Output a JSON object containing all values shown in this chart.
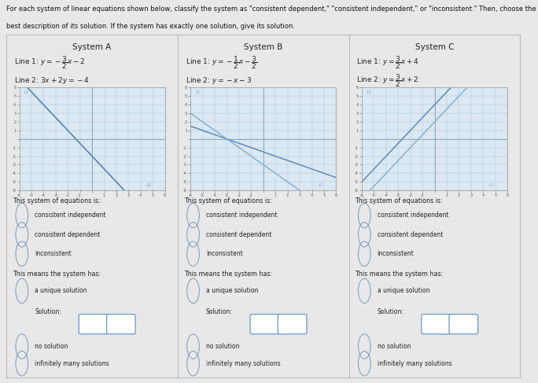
{
  "header_line1": "For each system of linear equations shown below, classify the system as \"consistent dependent,\" \"consistent independent,\" or \"inconsistent.\" Then, choose the",
  "header_line2": "best description of its solution. If the system has exactly one solution, give its solution.",
  "systems": [
    {
      "title": "System A",
      "line1_text": "Line 1: $y = -\\dfrac{3}{2}x - 2$",
      "line2_text": "Line 2: $3x + 2y = -4$",
      "line1_slope": -1.5,
      "line1_intercept": -2,
      "line2_slope": -1.5,
      "line2_intercept": -2,
      "line1_color": "#5b8db8",
      "line2_color": "#5b8db8"
    },
    {
      "title": "System B",
      "line1_text": "Line 1: $y = -\\dfrac{1}{2}x - \\dfrac{3}{2}$",
      "line2_text": "Line 2: $y = -x - 3$",
      "line1_slope": -0.5,
      "line1_intercept": -1.5,
      "line2_slope": -1.0,
      "line2_intercept": -3,
      "line1_color": "#5b8db8",
      "line2_color": "#7aafd4"
    },
    {
      "title": "System C",
      "line1_text": "Line 1: $y = \\dfrac{3}{2}x + 4$",
      "line2_text": "Line 2: $y = \\dfrac{3}{2}x + 2$",
      "line1_slope": 1.5,
      "line1_intercept": 4,
      "line2_slope": 1.5,
      "line2_intercept": 2,
      "line1_color": "#5b8db8",
      "line2_color": "#7aafd4"
    }
  ],
  "xlim": [
    -6,
    6
  ],
  "ylim": [
    -6,
    6
  ],
  "graph_bg": "#dce8f2",
  "grid_color": "#a8c4d8",
  "axis_color": "#8aaabb",
  "outer_bg": "#e8e8e8",
  "table_bg": "#f2f2f2",
  "border_color": "#bbbbbb",
  "radio_color": "#7799bb",
  "text_color": "#222222",
  "solution_box_color": "#6699cc",
  "classification_options": [
    "consistent independent",
    "consistent dependent",
    "inconsistent"
  ],
  "solution_options_1": "a unique solution",
  "solution_label": "Solution:",
  "solution_options_2": "no solution",
  "solution_options_3": "infinitely many solutions",
  "this_system_text": "This system of equations is:",
  "this_means_text": "This means the system has:"
}
